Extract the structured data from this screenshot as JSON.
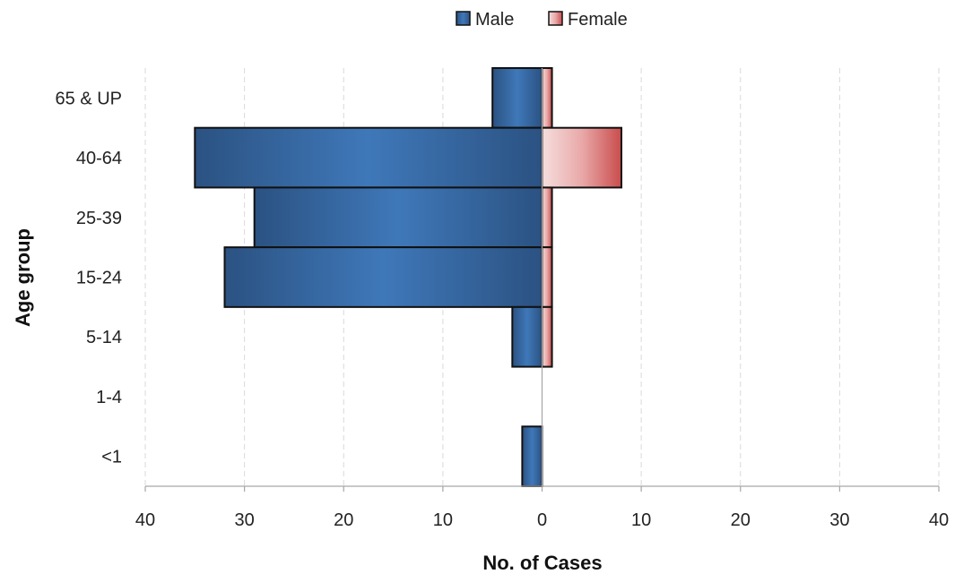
{
  "chart_data": {
    "type": "bar",
    "orientation": "horizontal",
    "layout": "population-pyramid",
    "categories": [
      "65 & UP",
      "40-64",
      "25-39",
      "15-24",
      "5-14",
      "1-4",
      "<1"
    ],
    "series": [
      {
        "name": "Male",
        "values": [
          5,
          35,
          29,
          32,
          3,
          0,
          2
        ],
        "color": "#3c6ea8",
        "side": "left"
      },
      {
        "name": "Female",
        "values": [
          1,
          8,
          1,
          1,
          1,
          0,
          0
        ],
        "color": "#d45b5b",
        "side": "right"
      }
    ],
    "xlabel": "No. of Cases",
    "ylabel": "Age group",
    "xlim": [
      -40,
      40
    ],
    "xticks": [
      -40,
      -30,
      -20,
      -10,
      0,
      10,
      20,
      30,
      40
    ],
    "xtick_labels": [
      "40",
      "30",
      "20",
      "10",
      "0",
      "10",
      "20",
      "30",
      "40"
    ],
    "grid": "vertical-dashed",
    "legend_position": "top-center"
  }
}
